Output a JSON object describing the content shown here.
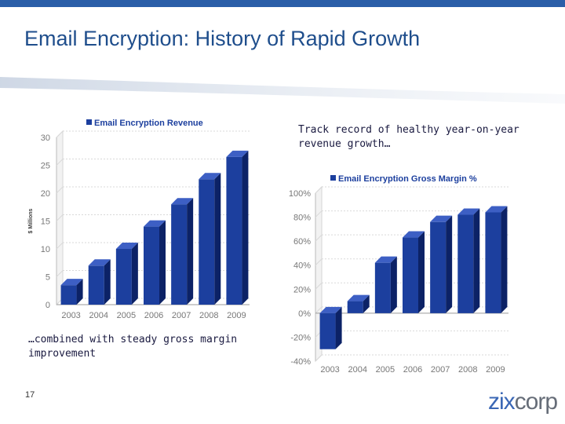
{
  "slide": {
    "title": "Email Encryption: History of Rapid Growth",
    "note_right": "Track record of healthy year-on-year revenue growth…",
    "note_left": "…combined with steady gross margin\n  improvement",
    "page_number": "17",
    "logo": {
      "part1": "zix",
      "part2": "corp"
    }
  },
  "colors": {
    "bar": "#1c3f9e",
    "bar_side": "#0c2266",
    "bar_top": "#3d5fc4",
    "accent": "#2a5ea8"
  },
  "chart_data": [
    {
      "type": "bar",
      "legend": "Email Encryption Revenue",
      "ylabel": "$ Millions",
      "categories": [
        "2003",
        "2004",
        "2005",
        "2006",
        "2007",
        "2008",
        "2009"
      ],
      "values": [
        3.5,
        7,
        10,
        14,
        18,
        22.5,
        26.5
      ],
      "ylim": [
        0,
        30
      ],
      "yticks": [
        0,
        5,
        10,
        15,
        20,
        25,
        30
      ],
      "ytick_labels": [
        "0",
        "5",
        "10",
        "15",
        "20",
        "25",
        "30"
      ],
      "grid": true,
      "legend_position": "top"
    },
    {
      "type": "bar",
      "legend": "Email Encryption Gross Margin %",
      "categories": [
        "2003",
        "2004",
        "2005",
        "2006",
        "2007",
        "2008",
        "2009"
      ],
      "values": [
        -30,
        10,
        42,
        63,
        76,
        82,
        84
      ],
      "ylim": [
        -40,
        100
      ],
      "yticks": [
        -40,
        -20,
        0,
        20,
        40,
        60,
        80,
        100
      ],
      "ytick_labels": [
        "-40%",
        "-20%",
        "0%",
        "20%",
        "40%",
        "60%",
        "80%",
        "100%"
      ],
      "grid": true,
      "legend_position": "top"
    }
  ]
}
